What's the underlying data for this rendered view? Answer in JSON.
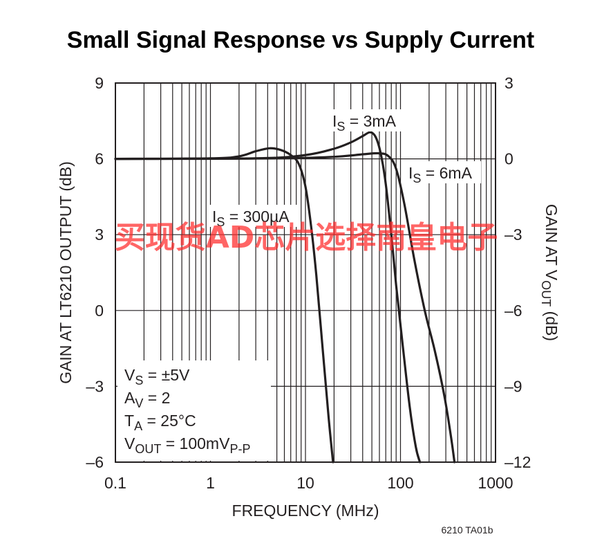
{
  "chart_data": {
    "type": "line",
    "title": "Small Signal Response vs Supply Current",
    "xlabel": "FREQUENCY (MHz)",
    "xscale": "log",
    "xlim": [
      0.1,
      1000
    ],
    "x_ticks": [
      "0.1",
      "1",
      "10",
      "100",
      "1000"
    ],
    "ylabel": "GAIN AT LT6210 OUTPUT (dB)",
    "ylim": [
      -6,
      9
    ],
    "y_ticks": [
      "9",
      "6",
      "3",
      "0",
      "–3",
      "–6"
    ],
    "y2label": {
      "main": "GAIN AT V",
      "sub": "OUT",
      "tail": " (dB)"
    },
    "y2lim": [
      -12,
      3
    ],
    "y2_ticks": [
      "3",
      "0",
      "–3",
      "–6",
      "–9",
      "–12"
    ],
    "grid": true,
    "series": [
      {
        "label": {
          "main": "I",
          "sub": "S",
          "tail": " = 300µA"
        },
        "points": [
          [
            0.1,
            6.0
          ],
          [
            1,
            6.02
          ],
          [
            2,
            6.1
          ],
          [
            3,
            6.3
          ],
          [
            4.2,
            6.42
          ],
          [
            5.5,
            6.35
          ],
          [
            7,
            6.15
          ],
          [
            8.5,
            5.8
          ],
          [
            10,
            4.9
          ],
          [
            11.5,
            3.3
          ],
          [
            13,
            1.4
          ],
          [
            15,
            -1.3
          ],
          [
            17.5,
            -4.2
          ],
          [
            19.5,
            -6.0
          ]
        ]
      },
      {
        "label": {
          "main": "I",
          "sub": "S",
          "tail": " = 3mA"
        },
        "points": [
          [
            0.1,
            6.0
          ],
          [
            3,
            6.02
          ],
          [
            10,
            6.15
          ],
          [
            20,
            6.4
          ],
          [
            30,
            6.65
          ],
          [
            40,
            6.9
          ],
          [
            48,
            7.05
          ],
          [
            55,
            6.85
          ],
          [
            62,
            6.2
          ],
          [
            70,
            5.0
          ],
          [
            80,
            3.0
          ],
          [
            90,
            1.0
          ],
          [
            105,
            -1.3
          ],
          [
            125,
            -3.8
          ],
          [
            145,
            -5.4
          ],
          [
            160,
            -6.0
          ]
        ]
      },
      {
        "label": {
          "main": "I",
          "sub": "S",
          "tail": " = 6mA"
        },
        "points": [
          [
            0.1,
            6.0
          ],
          [
            5,
            6.02
          ],
          [
            20,
            6.08
          ],
          [
            40,
            6.18
          ],
          [
            60,
            6.22
          ],
          [
            75,
            6.1
          ],
          [
            90,
            5.6
          ],
          [
            110,
            4.2
          ],
          [
            140,
            2.0
          ],
          [
            180,
            0.0
          ],
          [
            230,
            -1.6
          ],
          [
            290,
            -3.4
          ],
          [
            340,
            -5.0
          ],
          [
            370,
            -6.0
          ]
        ]
      }
    ],
    "annotations": [
      {
        "main": "V",
        "sub": "S",
        "tail": " = ±5V"
      },
      {
        "main": "A",
        "sub": "V",
        "tail": " = 2"
      },
      {
        "main": "T",
        "sub": "A",
        "tail": " = 25°C"
      },
      {
        "main": "V",
        "sub": "OUT",
        "tail": " = 100mV",
        "sub2": "P-P"
      }
    ],
    "figure_code": "6210 TA01b",
    "watermark": "买现货AD芯片选择南皇电子"
  }
}
